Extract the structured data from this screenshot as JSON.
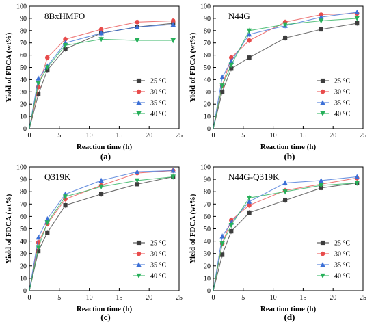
{
  "figure": {
    "panel_letters": [
      "(a)",
      "(b)",
      "(c)",
      "(d)"
    ]
  },
  "series_style": {
    "25 °C": {
      "color": "#3d3d3d",
      "marker": "square"
    },
    "30 °C": {
      "color": "#e84b4b",
      "marker": "circle"
    },
    "35 °C": {
      "color": "#3b6fd6",
      "marker": "triangle-up"
    },
    "40 °C": {
      "color": "#27b05a",
      "marker": "triangle-down"
    }
  },
  "chart_data": [
    {
      "type": "line",
      "title": "8BxHMFO",
      "xlabel": "Reaction time (h)",
      "ylabel": "Yield of FDCA (wt%)",
      "xlim": [
        0,
        25
      ],
      "ylim": [
        0,
        100
      ],
      "xticks": [
        0,
        5,
        10,
        15,
        20,
        25
      ],
      "yticks": [
        0,
        10,
        20,
        30,
        40,
        50,
        60,
        70,
        80,
        90,
        100
      ],
      "grid": false,
      "legend": "bottom-right",
      "x": [
        0,
        1.5,
        3,
        6,
        12,
        18,
        24
      ],
      "series": [
        {
          "name": "25 °C",
          "values": [
            0,
            28,
            48,
            65,
            78,
            83,
            86
          ]
        },
        {
          "name": "30 °C",
          "values": [
            0,
            34,
            58,
            73,
            81,
            87,
            88
          ]
        },
        {
          "name": "35 °C",
          "values": [
            0,
            41,
            51,
            70,
            78,
            83,
            85
          ]
        },
        {
          "name": "40 °C",
          "values": [
            0,
            37,
            50,
            68,
            73,
            72,
            72
          ]
        }
      ]
    },
    {
      "type": "line",
      "title": "N44G",
      "xlabel": "Reaction time (h)",
      "ylabel": "Yield of FDCA (wt%)",
      "xlim": [
        0,
        25
      ],
      "ylim": [
        0,
        100
      ],
      "xticks": [
        0,
        5,
        10,
        15,
        20,
        25
      ],
      "yticks": [
        0,
        10,
        20,
        30,
        40,
        50,
        60,
        70,
        80,
        90,
        100
      ],
      "grid": false,
      "legend": "bottom-right",
      "x": [
        0,
        1.5,
        3,
        6,
        12,
        18,
        24
      ],
      "series": [
        {
          "name": "25 °C",
          "values": [
            0,
            30,
            49,
            58,
            74,
            81,
            86
          ]
        },
        {
          "name": "30 °C",
          "values": [
            0,
            35,
            58,
            72,
            87,
            93,
            94
          ]
        },
        {
          "name": "35 °C",
          "values": [
            0,
            42,
            55,
            77,
            84,
            91,
            95
          ]
        },
        {
          "name": "40 °C",
          "values": [
            0,
            35,
            52,
            80,
            85,
            88,
            90
          ]
        }
      ]
    },
    {
      "type": "line",
      "title": "Q319K",
      "xlabel": "Reaction time (h)",
      "ylabel": "Yield of FDCA (wt%)",
      "xlim": [
        0,
        25
      ],
      "ylim": [
        0,
        100
      ],
      "xticks": [
        0,
        5,
        10,
        15,
        20,
        25
      ],
      "yticks": [
        0,
        10,
        20,
        30,
        40,
        50,
        60,
        70,
        80,
        90,
        100
      ],
      "grid": false,
      "legend": "bottom-right",
      "x": [
        0,
        1.5,
        3,
        6,
        12,
        18,
        24
      ],
      "series": [
        {
          "name": "25 °C",
          "values": [
            0,
            32,
            47,
            69,
            78,
            86,
            92
          ]
        },
        {
          "name": "30 °C",
          "values": [
            0,
            39,
            54,
            74,
            85,
            95,
            97
          ]
        },
        {
          "name": "35 °C",
          "values": [
            0,
            43,
            58,
            78,
            89,
            96,
            97
          ]
        },
        {
          "name": "40 °C",
          "values": [
            0,
            35,
            55,
            76,
            84,
            89,
            92
          ]
        }
      ]
    },
    {
      "type": "line",
      "title": "N44G-Q319K",
      "xlabel": "Reaction time (h)",
      "ylabel": "Yield of FDCA (wt%)",
      "xlim": [
        0,
        25
      ],
      "ylim": [
        0,
        100
      ],
      "xticks": [
        0,
        5,
        10,
        15,
        20,
        25
      ],
      "yticks": [
        0,
        10,
        20,
        30,
        40,
        50,
        60,
        70,
        80,
        90,
        100
      ],
      "grid": false,
      "legend": "bottom-right",
      "x": [
        0,
        1.5,
        3,
        6,
        12,
        18,
        24
      ],
      "series": [
        {
          "name": "25 °C",
          "values": [
            0,
            29,
            48,
            63,
            73,
            83,
            87
          ]
        },
        {
          "name": "30 °C",
          "values": [
            0,
            38,
            57,
            69,
            81,
            86,
            91
          ]
        },
        {
          "name": "35 °C",
          "values": [
            0,
            44,
            55,
            72,
            87,
            89,
            92
          ]
        },
        {
          "name": "40 °C",
          "values": [
            0,
            38,
            53,
            75,
            80,
            85,
            87
          ]
        }
      ]
    }
  ]
}
